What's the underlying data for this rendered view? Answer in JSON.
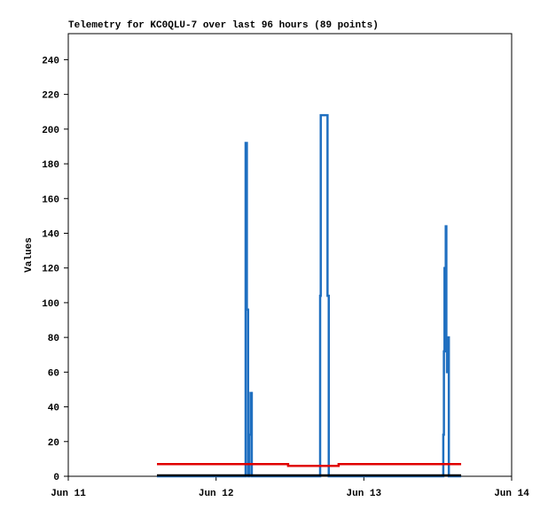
{
  "chart_data": {
    "type": "step",
    "title": "Telemetry for KC0QLU-7 over last 96 hours (89 points)",
    "y_label": "Values",
    "xlim": [
      0,
      72
    ],
    "xticks": [
      {
        "value": 0,
        "label": "Jun 11"
      },
      {
        "value": 24,
        "label": "Jun 12"
      },
      {
        "value": 48,
        "label": "Jun 13"
      },
      {
        "value": 72,
        "label": "Jun 14"
      }
    ],
    "ylim": [
      0,
      255
    ],
    "yticks": [
      0,
      20,
      40,
      60,
      80,
      100,
      120,
      140,
      160,
      180,
      200,
      220,
      240
    ],
    "series": [
      {
        "color": "#1f6fc0",
        "x": [
          14.4,
          28.8,
          29.0,
          29.2,
          29.4,
          29.6,
          29.8,
          40.9,
          41.0,
          42.1,
          42.3,
          60.9,
          61.0,
          61.1,
          61.3,
          61.4,
          61.5,
          61.6,
          61.8,
          63.8
        ],
        "values": [
          0,
          192,
          96,
          0,
          24,
          48,
          0,
          104,
          208,
          104,
          0,
          24,
          72,
          120,
          144,
          72,
          60,
          80,
          0,
          0
        ]
      },
      {
        "color": "#e00000",
        "x": [
          14.4,
          35.7,
          43.9,
          63.8
        ],
        "values": [
          7,
          6,
          7,
          7
        ]
      },
      {
        "color": "#000000",
        "x": [
          14.4,
          63.8
        ],
        "values": [
          0.5,
          0.5
        ]
      }
    ]
  }
}
